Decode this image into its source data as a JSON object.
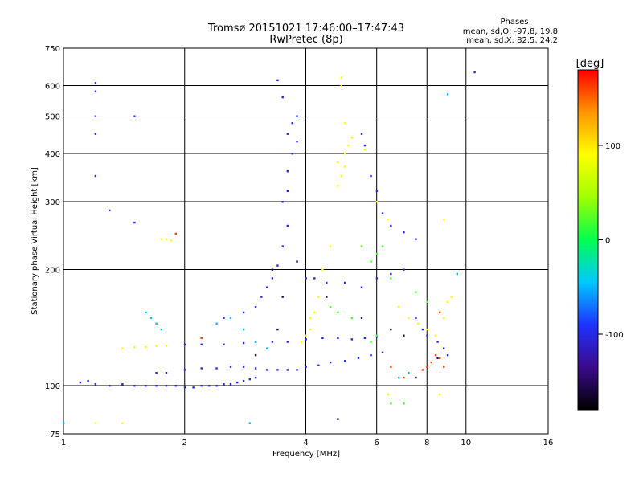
{
  "chart_data": {
    "type": "scatter",
    "title": "Tromsø 20151021 17:46:00–17:47:43",
    "subtitle": "RwPretec (8p)",
    "xlabel": "Frequency [MHz]",
    "ylabel": "Stationary phase Virtual Height [km]",
    "x_scale": "log",
    "y_scale": "log",
    "xlim": [
      1,
      16
    ],
    "ylim": [
      75,
      750
    ],
    "x_ticks": [
      1,
      2,
      4,
      6,
      8,
      10,
      16
    ],
    "y_ticks": [
      75,
      100,
      200,
      300,
      400,
      500,
      600,
      750
    ],
    "grid": true,
    "stats_title": "Phases",
    "stats_lines": [
      "mean, sd,O: -97.8, 19.8",
      "mean, sd,X:  82.5, 24.2"
    ],
    "colorbar": {
      "label": "[deg]",
      "ticks": [
        100,
        0,
        -100
      ],
      "range": [
        -180,
        180
      ],
      "colors": [
        "#000000",
        "#3c0a8c",
        "#1e32ff",
        "#00c8ff",
        "#00ff50",
        "#a0ff00",
        "#ffff00",
        "#ff9600",
        "#ff0000"
      ]
    },
    "series": [
      {
        "description": "O-mode traces (deep blue)",
        "phase": -100,
        "points": [
          [
            1.1,
            102
          ],
          [
            1.15,
            103
          ],
          [
            1.2,
            101
          ],
          [
            1.3,
            100
          ],
          [
            1.4,
            101
          ],
          [
            1.5,
            100
          ],
          [
            1.6,
            100
          ],
          [
            1.7,
            100
          ],
          [
            1.8,
            100
          ],
          [
            1.9,
            100
          ],
          [
            2.0,
            99
          ],
          [
            2.1,
            99
          ],
          [
            2.2,
            100
          ],
          [
            2.3,
            100
          ],
          [
            2.4,
            100
          ],
          [
            2.5,
            101
          ],
          [
            2.6,
            101
          ],
          [
            2.7,
            102
          ],
          [
            2.8,
            103
          ],
          [
            2.9,
            104
          ],
          [
            3.0,
            105
          ],
          [
            1.7,
            108
          ],
          [
            1.8,
            108
          ],
          [
            2.0,
            110
          ],
          [
            2.2,
            111
          ],
          [
            2.4,
            111
          ],
          [
            2.6,
            112
          ],
          [
            2.8,
            112
          ],
          [
            3.0,
            111
          ],
          [
            3.2,
            110
          ],
          [
            3.4,
            110
          ],
          [
            3.6,
            110
          ],
          [
            3.8,
            110
          ],
          [
            4.0,
            112
          ],
          [
            4.3,
            113
          ],
          [
            4.6,
            115
          ],
          [
            5.0,
            116
          ],
          [
            5.4,
            118
          ],
          [
            5.8,
            120
          ],
          [
            6.2,
            122
          ],
          [
            2.0,
            128
          ],
          [
            2.2,
            128
          ],
          [
            2.5,
            128
          ],
          [
            2.8,
            129
          ],
          [
            3.0,
            130
          ],
          [
            3.3,
            130
          ],
          [
            3.6,
            130
          ],
          [
            4.0,
            132
          ],
          [
            4.4,
            133
          ],
          [
            4.8,
            133
          ],
          [
            5.2,
            132
          ],
          [
            5.6,
            133
          ],
          [
            6.0,
            134
          ],
          [
            2.5,
            150
          ],
          [
            2.8,
            155
          ],
          [
            3.0,
            160
          ],
          [
            3.1,
            170
          ],
          [
            3.2,
            180
          ],
          [
            3.3,
            190
          ],
          [
            3.4,
            205
          ],
          [
            3.5,
            230
          ],
          [
            3.6,
            260
          ],
          [
            3.5,
            300
          ],
          [
            3.6,
            320
          ],
          [
            3.6,
            360
          ],
          [
            3.7,
            400
          ],
          [
            3.8,
            430
          ],
          [
            3.6,
            450
          ],
          [
            3.7,
            480
          ],
          [
            3.8,
            500
          ],
          [
            3.5,
            560
          ],
          [
            3.4,
            620
          ],
          [
            4.0,
            190
          ],
          [
            4.2,
            190
          ],
          [
            4.5,
            185
          ],
          [
            5.0,
            185
          ],
          [
            5.5,
            180
          ],
          [
            6.0,
            190
          ],
          [
            6.5,
            195
          ],
          [
            7.0,
            200
          ],
          [
            1.2,
            610
          ],
          [
            1.2,
            580
          ],
          [
            1.2,
            500
          ],
          [
            1.2,
            450
          ],
          [
            1.2,
            350
          ],
          [
            1.5,
            500
          ],
          [
            1.3,
            285
          ],
          [
            1.5,
            265
          ],
          [
            10.5,
            650
          ],
          [
            5.5,
            450
          ],
          [
            5.6,
            420
          ],
          [
            5.8,
            350
          ],
          [
            6.0,
            320
          ],
          [
            6.2,
            280
          ],
          [
            6.5,
            260
          ],
          [
            7.0,
            250
          ],
          [
            7.5,
            240
          ],
          [
            7.5,
            150
          ],
          [
            7.8,
            140
          ],
          [
            8.0,
            135
          ],
          [
            8.5,
            130
          ],
          [
            8.8,
            125
          ],
          [
            9.0,
            120
          ]
        ]
      },
      {
        "description": "low-phase traces (purple)",
        "phase": -150,
        "points": [
          [
            3.0,
            120
          ],
          [
            3.2,
            125
          ],
          [
            3.4,
            140
          ],
          [
            3.5,
            170
          ],
          [
            3.3,
            200
          ],
          [
            3.8,
            210
          ],
          [
            4.5,
            170
          ],
          [
            5.5,
            150
          ],
          [
            6.5,
            140
          ],
          [
            7.0,
            135
          ],
          [
            4.8,
            82
          ],
          [
            7.5,
            105
          ],
          [
            8.0,
            112
          ],
          [
            8.5,
            118
          ]
        ]
      },
      {
        "description": "cyan traces",
        "phase": -50,
        "points": [
          [
            1.6,
            155
          ],
          [
            1.65,
            150
          ],
          [
            1.7,
            145
          ],
          [
            1.75,
            140
          ],
          [
            2.4,
            145
          ],
          [
            2.6,
            150
          ],
          [
            2.8,
            140
          ],
          [
            3.0,
            130
          ],
          [
            3.2,
            125
          ],
          [
            1.0,
            80
          ],
          [
            2.9,
            80
          ],
          [
            6.8,
            105
          ],
          [
            7.2,
            108
          ],
          [
            9.0,
            570
          ],
          [
            9.5,
            195
          ]
        ]
      },
      {
        "description": "green traces",
        "phase": 20,
        "points": [
          [
            5.8,
            210
          ],
          [
            6.0,
            220
          ],
          [
            6.2,
            230
          ],
          [
            5.5,
            230
          ],
          [
            4.6,
            160
          ],
          [
            4.8,
            155
          ],
          [
            5.2,
            150
          ],
          [
            6.5,
            190
          ],
          [
            7.5,
            175
          ],
          [
            8.0,
            165
          ],
          [
            5.8,
            130
          ],
          [
            6.0,
            135
          ],
          [
            6.5,
            90
          ],
          [
            7.0,
            90
          ]
        ]
      },
      {
        "description": "X-mode traces (yellow / yellow-green)",
        "phase": 90,
        "points": [
          [
            1.4,
            125
          ],
          [
            1.5,
            126
          ],
          [
            1.6,
            126
          ],
          [
            1.7,
            127
          ],
          [
            1.8,
            127
          ],
          [
            1.75,
            240
          ],
          [
            1.8,
            240
          ],
          [
            1.85,
            238
          ],
          [
            4.1,
            150
          ],
          [
            4.2,
            155
          ],
          [
            4.3,
            170
          ],
          [
            4.4,
            200
          ],
          [
            4.6,
            230
          ],
          [
            4.8,
            330
          ],
          [
            4.9,
            350
          ],
          [
            5.0,
            370
          ],
          [
            5.0,
            400
          ],
          [
            4.8,
            380
          ],
          [
            4.9,
            600
          ],
          [
            4.9,
            630
          ],
          [
            5.0,
            480
          ],
          [
            5.1,
            420
          ],
          [
            5.2,
            440
          ],
          [
            5.6,
            410
          ],
          [
            6.0,
            300
          ],
          [
            6.4,
            270
          ],
          [
            6.8,
            160
          ],
          [
            7.2,
            150
          ],
          [
            7.6,
            145
          ],
          [
            8.0,
            140
          ],
          [
            8.4,
            135
          ],
          [
            8.8,
            150
          ],
          [
            9.0,
            165
          ],
          [
            9.2,
            170
          ],
          [
            3.9,
            130
          ],
          [
            4.0,
            135
          ],
          [
            4.1,
            140
          ],
          [
            1.2,
            80
          ],
          [
            1.4,
            80
          ],
          [
            6.4,
            95
          ],
          [
            8.6,
            95
          ],
          [
            8.8,
            270
          ]
        ]
      },
      {
        "description": "red / orange traces",
        "phase": 160,
        "points": [
          [
            7.8,
            110
          ],
          [
            8.0,
            112
          ],
          [
            8.2,
            115
          ],
          [
            8.4,
            120
          ],
          [
            8.6,
            118
          ],
          [
            8.8,
            112
          ],
          [
            7.0,
            105
          ],
          [
            6.5,
            112
          ],
          [
            2.2,
            133
          ],
          [
            1.9,
            248
          ],
          [
            8.6,
            155
          ]
        ]
      }
    ]
  }
}
